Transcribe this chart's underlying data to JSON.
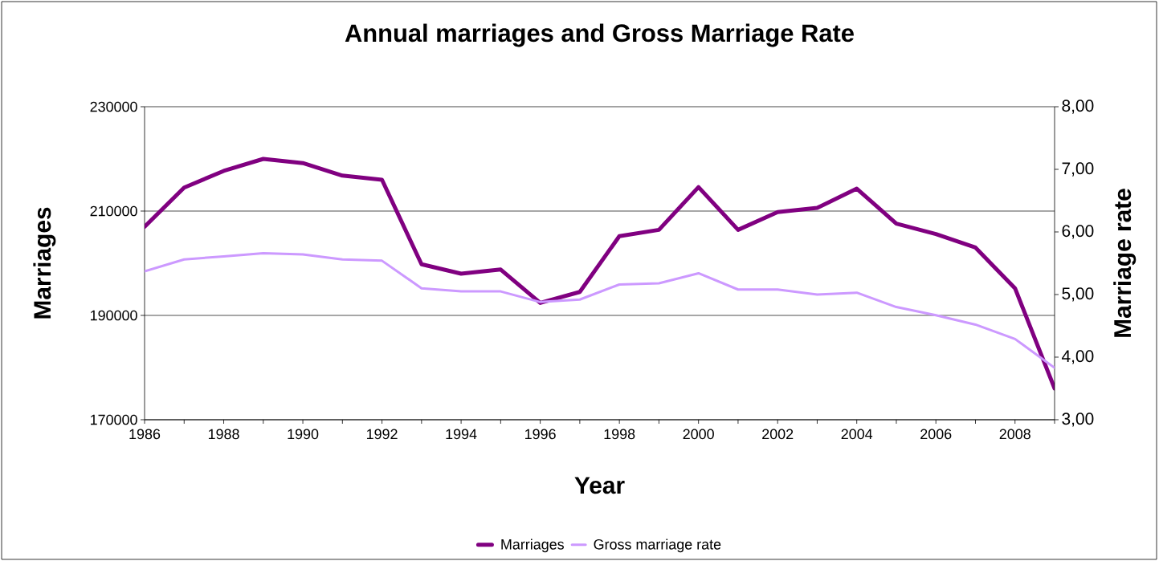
{
  "chart_data": {
    "type": "line",
    "title": "Annual marriages and Gross Marriage Rate",
    "xlabel": "Year",
    "ylabel": "Marriages",
    "y2label": "Marriage rate",
    "x": [
      1986,
      1987,
      1988,
      1989,
      1990,
      1991,
      1992,
      1993,
      1994,
      1995,
      1996,
      1997,
      1998,
      1999,
      2000,
      2001,
      2002,
      2003,
      2004,
      2005,
      2006,
      2007,
      2008,
      2009
    ],
    "series": [
      {
        "name": "Marriages",
        "color": "#800080",
        "values": [
          207000,
          214500,
          217700,
          220000,
          219200,
          216800,
          216000,
          199800,
          198000,
          198800,
          192400,
          194500,
          205200,
          206400,
          214600,
          206400,
          209800,
          210600,
          214300,
          207600,
          205600,
          203000,
          195200,
          176000
        ]
      },
      {
        "name": "Gross marriage rate",
        "color": "#cc99ff",
        "axis": "y2",
        "values": [
          5.37,
          5.56,
          5.61,
          5.66,
          5.64,
          5.56,
          5.54,
          5.1,
          5.05,
          5.05,
          4.88,
          4.92,
          5.16,
          5.18,
          5.34,
          5.08,
          5.08,
          5.0,
          5.03,
          4.8,
          4.67,
          4.52,
          4.29,
          3.83
        ]
      }
    ],
    "xlim": [
      1986,
      2009
    ],
    "xticks": [
      1986,
      {
        "value": 1987,
        "label": null
      },
      1988,
      {
        "value": 1989,
        "label": null
      },
      1990,
      {
        "value": 1991,
        "label": null
      },
      1992,
      {
        "value": 1993,
        "label": null
      },
      1994,
      {
        "value": 1995,
        "label": null
      },
      1996,
      {
        "value": 1997,
        "label": null
      },
      1998,
      {
        "value": 1999,
        "label": null
      },
      2000,
      {
        "value": 2001,
        "label": null
      },
      2002,
      {
        "value": 2003,
        "label": null
      },
      2004,
      {
        "value": 2005,
        "label": null
      },
      2006,
      {
        "value": 2007,
        "label": null
      },
      2008,
      {
        "value": 2009,
        "label": null
      }
    ],
    "ylim": [
      170000,
      230000
    ],
    "yticks": [
      170000,
      190000,
      210000,
      230000
    ],
    "y2lim": [
      3,
      8
    ],
    "y2ticks": [
      {
        "value": 3,
        "label": "3,00"
      },
      {
        "value": 4,
        "label": "4,00"
      },
      {
        "value": 5,
        "label": "5,00"
      },
      {
        "value": 6,
        "label": "6,00"
      },
      {
        "value": 7,
        "label": "7,00"
      },
      {
        "value": 8,
        "label": "8,00"
      }
    ],
    "grid": "y",
    "legend": "bottom",
    "marker": "none",
    "line_style": "solid"
  }
}
